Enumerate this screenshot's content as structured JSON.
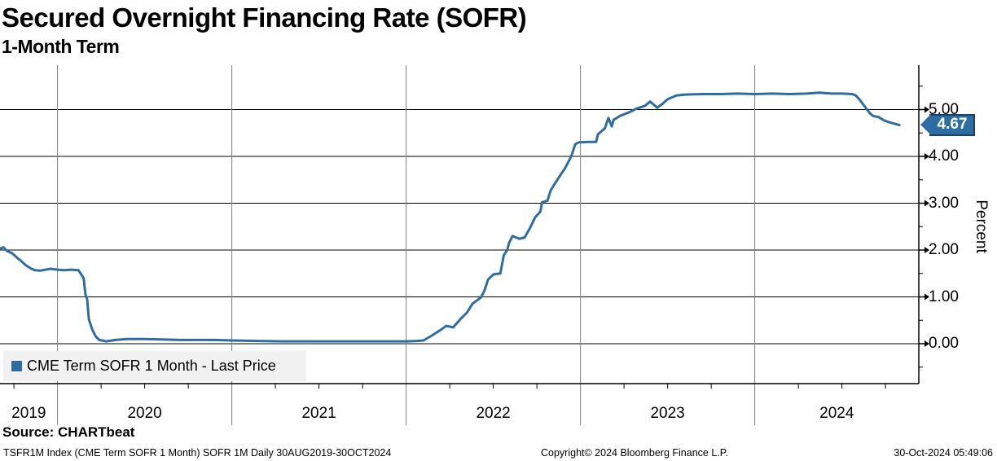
{
  "header": {
    "title": "Secured Overnight Financing Rate (SOFR)",
    "subtitle": "1-Month Term"
  },
  "legend": {
    "label": "CME Term SOFR 1 Month - Last Price"
  },
  "last_price": {
    "value": "4.67"
  },
  "axis": {
    "y_label": "Percent",
    "y_ticks": [
      "5.00",
      "4.00",
      "3.00",
      "2.00",
      "1.00",
      "0.00"
    ],
    "x_ticks": [
      "2019",
      "2020",
      "2021",
      "2022",
      "2023",
      "2024"
    ]
  },
  "source_line": "Source: CHARTbeat",
  "footer": {
    "left": "TSFR1M Index (CME Term SOFR 1 Month) SOFR 1M  Daily 30AUG2019-30OCT2024",
    "center": "Copyright© 2024 Bloomberg Finance L.P.",
    "right": "30-Oct-2024 05:49:06"
  },
  "colors": {
    "line": "#2e6da4",
    "badge_border": "#193f63",
    "legend_background": "#f1f1f1",
    "grid": "#000000",
    "year_line": "#7f7f7f"
  },
  "chart_data": {
    "type": "line",
    "title": "Secured Overnight Financing Rate (SOFR)",
    "subtitle": "1-Month Term",
    "ylabel": "Percent",
    "xlabel": "",
    "grid": true,
    "legend_position": "bottom-left",
    "ylim": [
      -0.85,
      5.95
    ],
    "xlim_years": [
      2019.67,
      2025.0
    ],
    "y_tick_values": [
      5,
      4,
      3,
      2,
      1,
      0
    ],
    "y_tick_labels": [
      "5.00",
      "4.00",
      "3.00",
      "2.00",
      "1.00",
      "0.00"
    ],
    "x_tick_years": [
      2019,
      2020,
      2021,
      2022,
      2023,
      2024
    ],
    "date_range": "Daily 30AUG2019-30OCT2024",
    "last_value": 4.67,
    "series": [
      {
        "name": "CME Term SOFR 1 Month - Last Price",
        "points": [
          [
            2019.67,
            2.03
          ],
          [
            2019.69,
            2.06
          ],
          [
            2019.71,
            1.98
          ],
          [
            2019.74,
            1.93
          ],
          [
            2019.77,
            1.83
          ],
          [
            2019.79,
            1.77
          ],
          [
            2019.82,
            1.67
          ],
          [
            2019.85,
            1.6
          ],
          [
            2019.87,
            1.57
          ],
          [
            2019.9,
            1.56
          ],
          [
            2019.93,
            1.58
          ],
          [
            2019.96,
            1.6
          ],
          [
            2020.0,
            1.58
          ],
          [
            2020.04,
            1.57
          ],
          [
            2020.08,
            1.58
          ],
          [
            2020.12,
            1.57
          ],
          [
            2020.15,
            1.4
          ],
          [
            2020.16,
            1.05
          ],
          [
            2020.17,
            0.95
          ],
          [
            2020.18,
            0.52
          ],
          [
            2020.2,
            0.3
          ],
          [
            2020.22,
            0.15
          ],
          [
            2020.24,
            0.08
          ],
          [
            2020.28,
            0.05
          ],
          [
            2020.33,
            0.08
          ],
          [
            2020.4,
            0.1
          ],
          [
            2020.5,
            0.1
          ],
          [
            2020.6,
            0.09
          ],
          [
            2020.7,
            0.08
          ],
          [
            2020.8,
            0.08
          ],
          [
            2020.9,
            0.08
          ],
          [
            2021.0,
            0.07
          ],
          [
            2021.15,
            0.06
          ],
          [
            2021.3,
            0.05
          ],
          [
            2021.5,
            0.05
          ],
          [
            2021.7,
            0.05
          ],
          [
            2021.9,
            0.05
          ],
          [
            2022.0,
            0.05
          ],
          [
            2022.06,
            0.06
          ],
          [
            2022.1,
            0.07
          ],
          [
            2022.15,
            0.18
          ],
          [
            2022.2,
            0.3
          ],
          [
            2022.23,
            0.38
          ],
          [
            2022.27,
            0.35
          ],
          [
            2022.31,
            0.52
          ],
          [
            2022.35,
            0.67
          ],
          [
            2022.38,
            0.85
          ],
          [
            2022.43,
            0.99
          ],
          [
            2022.45,
            1.14
          ],
          [
            2022.47,
            1.37
          ],
          [
            2022.5,
            1.48
          ],
          [
            2022.54,
            1.5
          ],
          [
            2022.56,
            1.89
          ],
          [
            2022.58,
            2.0
          ],
          [
            2022.59,
            2.15
          ],
          [
            2022.61,
            2.3
          ],
          [
            2022.65,
            2.24
          ],
          [
            2022.68,
            2.27
          ],
          [
            2022.71,
            2.47
          ],
          [
            2022.74,
            2.7
          ],
          [
            2022.77,
            2.82
          ],
          [
            2022.78,
            3.02
          ],
          [
            2022.81,
            3.05
          ],
          [
            2022.83,
            3.28
          ],
          [
            2022.86,
            3.46
          ],
          [
            2022.89,
            3.63
          ],
          [
            2022.91,
            3.74
          ],
          [
            2022.94,
            3.95
          ],
          [
            2022.95,
            4.03
          ],
          [
            2022.97,
            4.26
          ],
          [
            2022.99,
            4.3
          ],
          [
            2023.05,
            4.31
          ],
          [
            2023.09,
            4.31
          ],
          [
            2023.1,
            4.47
          ],
          [
            2023.14,
            4.6
          ],
          [
            2023.16,
            4.82
          ],
          [
            2023.18,
            4.64
          ],
          [
            2023.19,
            4.78
          ],
          [
            2023.23,
            4.87
          ],
          [
            2023.28,
            4.94
          ],
          [
            2023.32,
            5.02
          ],
          [
            2023.37,
            5.08
          ],
          [
            2023.4,
            5.17
          ],
          [
            2023.44,
            5.04
          ],
          [
            2023.47,
            5.12
          ],
          [
            2023.5,
            5.22
          ],
          [
            2023.55,
            5.3
          ],
          [
            2023.6,
            5.32
          ],
          [
            2023.7,
            5.33
          ],
          [
            2023.8,
            5.33
          ],
          [
            2023.9,
            5.34
          ],
          [
            2024.0,
            5.33
          ],
          [
            2024.1,
            5.34
          ],
          [
            2024.2,
            5.33
          ],
          [
            2024.3,
            5.34
          ],
          [
            2024.37,
            5.36
          ],
          [
            2024.44,
            5.34
          ],
          [
            2024.5,
            5.34
          ],
          [
            2024.56,
            5.33
          ],
          [
            2024.58,
            5.3
          ],
          [
            2024.6,
            5.22
          ],
          [
            2024.62,
            5.12
          ],
          [
            2024.64,
            5.02
          ],
          [
            2024.66,
            4.92
          ],
          [
            2024.68,
            4.86
          ],
          [
            2024.71,
            4.84
          ],
          [
            2024.74,
            4.77
          ],
          [
            2024.77,
            4.73
          ],
          [
            2024.8,
            4.7
          ],
          [
            2024.83,
            4.67
          ]
        ]
      }
    ]
  }
}
